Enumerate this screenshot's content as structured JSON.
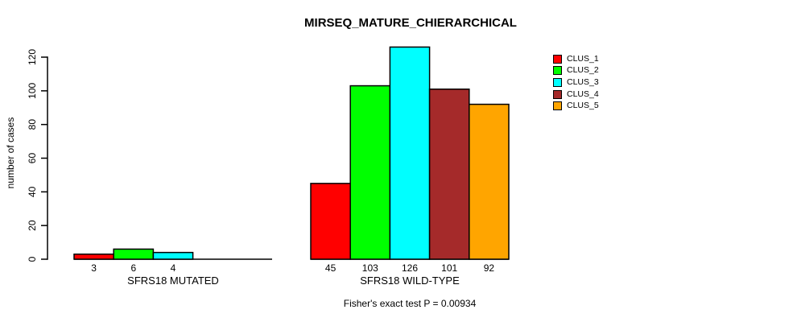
{
  "chart_data": {
    "type": "bar",
    "title": "MIRSEQ_MATURE_CHIERARCHICAL",
    "ylabel": "number of cases",
    "xlabel": "",
    "ylim": [
      0,
      126
    ],
    "yticks": [
      0,
      20,
      40,
      60,
      80,
      100,
      120
    ],
    "grid": false,
    "legend_position": "top-right",
    "categories": [
      "SFRS18 MUTATED",
      "SFRS18 WILD-TYPE"
    ],
    "series": [
      {
        "name": "CLUS_1",
        "color": "#FF0000",
        "values": [
          3,
          45
        ]
      },
      {
        "name": "CLUS_2",
        "color": "#00FF00",
        "values": [
          6,
          103
        ]
      },
      {
        "name": "CLUS_3",
        "color": "#00FFFF",
        "values": [
          4,
          126
        ]
      },
      {
        "name": "CLUS_4",
        "color": "#A52A2A",
        "values": [
          0,
          101
        ]
      },
      {
        "name": "CLUS_5",
        "color": "#FFA500",
        "values": [
          0,
          92
        ]
      }
    ],
    "bar_value_labels": {
      "SFRS18 MUTATED": [
        "3",
        "6",
        "4"
      ],
      "SFRS18 WILD-TYPE": [
        "45",
        "103",
        "126",
        "101",
        "92"
      ]
    },
    "annotation": "Fisher's exact test P = 0.00934"
  },
  "colors": {
    "axis": "#000000",
    "text": "#000000",
    "background": "#FFFFFF"
  }
}
